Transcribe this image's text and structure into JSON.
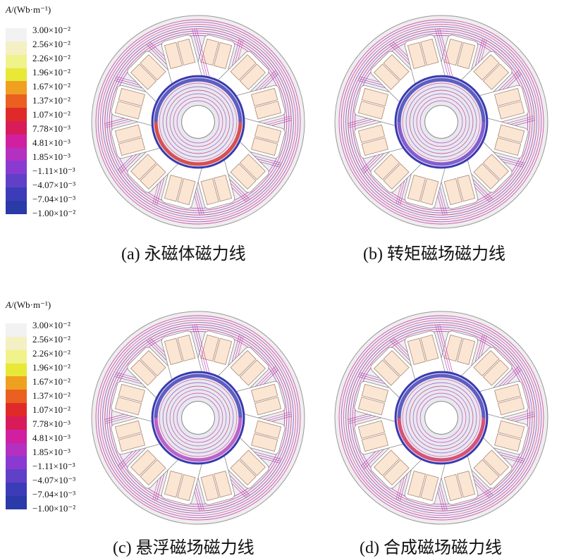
{
  "legend": {
    "title_var": "A",
    "title_unit": "/(Wb·m⁻¹)",
    "levels": [
      "3.00×10⁻²",
      "2.56×10⁻²",
      "2.26×10⁻²",
      "1.96×10⁻²",
      "1.67×10⁻²",
      "1.37×10⁻²",
      "1.07×10⁻²",
      "7.78×10⁻³",
      "4.81×10⁻³",
      "1.85×10⁻³",
      "−1.11×10⁻³",
      "−4.07×10⁻³",
      "−7.04×10⁻³",
      "−1.00×10⁻²"
    ],
    "colors": [
      "#f2f2f2",
      "#f4f0c4",
      "#f0f28a",
      "#e7e838",
      "#f0a020",
      "#ea6020",
      "#e02a2a",
      "#d81c5a",
      "#d020a0",
      "#b430c0",
      "#8a3ad0",
      "#6040c8",
      "#3c3cb8",
      "#2a3aa8"
    ]
  },
  "panels": [
    {
      "caption": "(a) 永磁体磁力线"
    },
    {
      "caption": "(b) 转矩磁场磁力线"
    },
    {
      "caption": "(c) 悬浮磁场磁力线"
    },
    {
      "caption": "(d) 合成磁场磁力线"
    }
  ]
}
